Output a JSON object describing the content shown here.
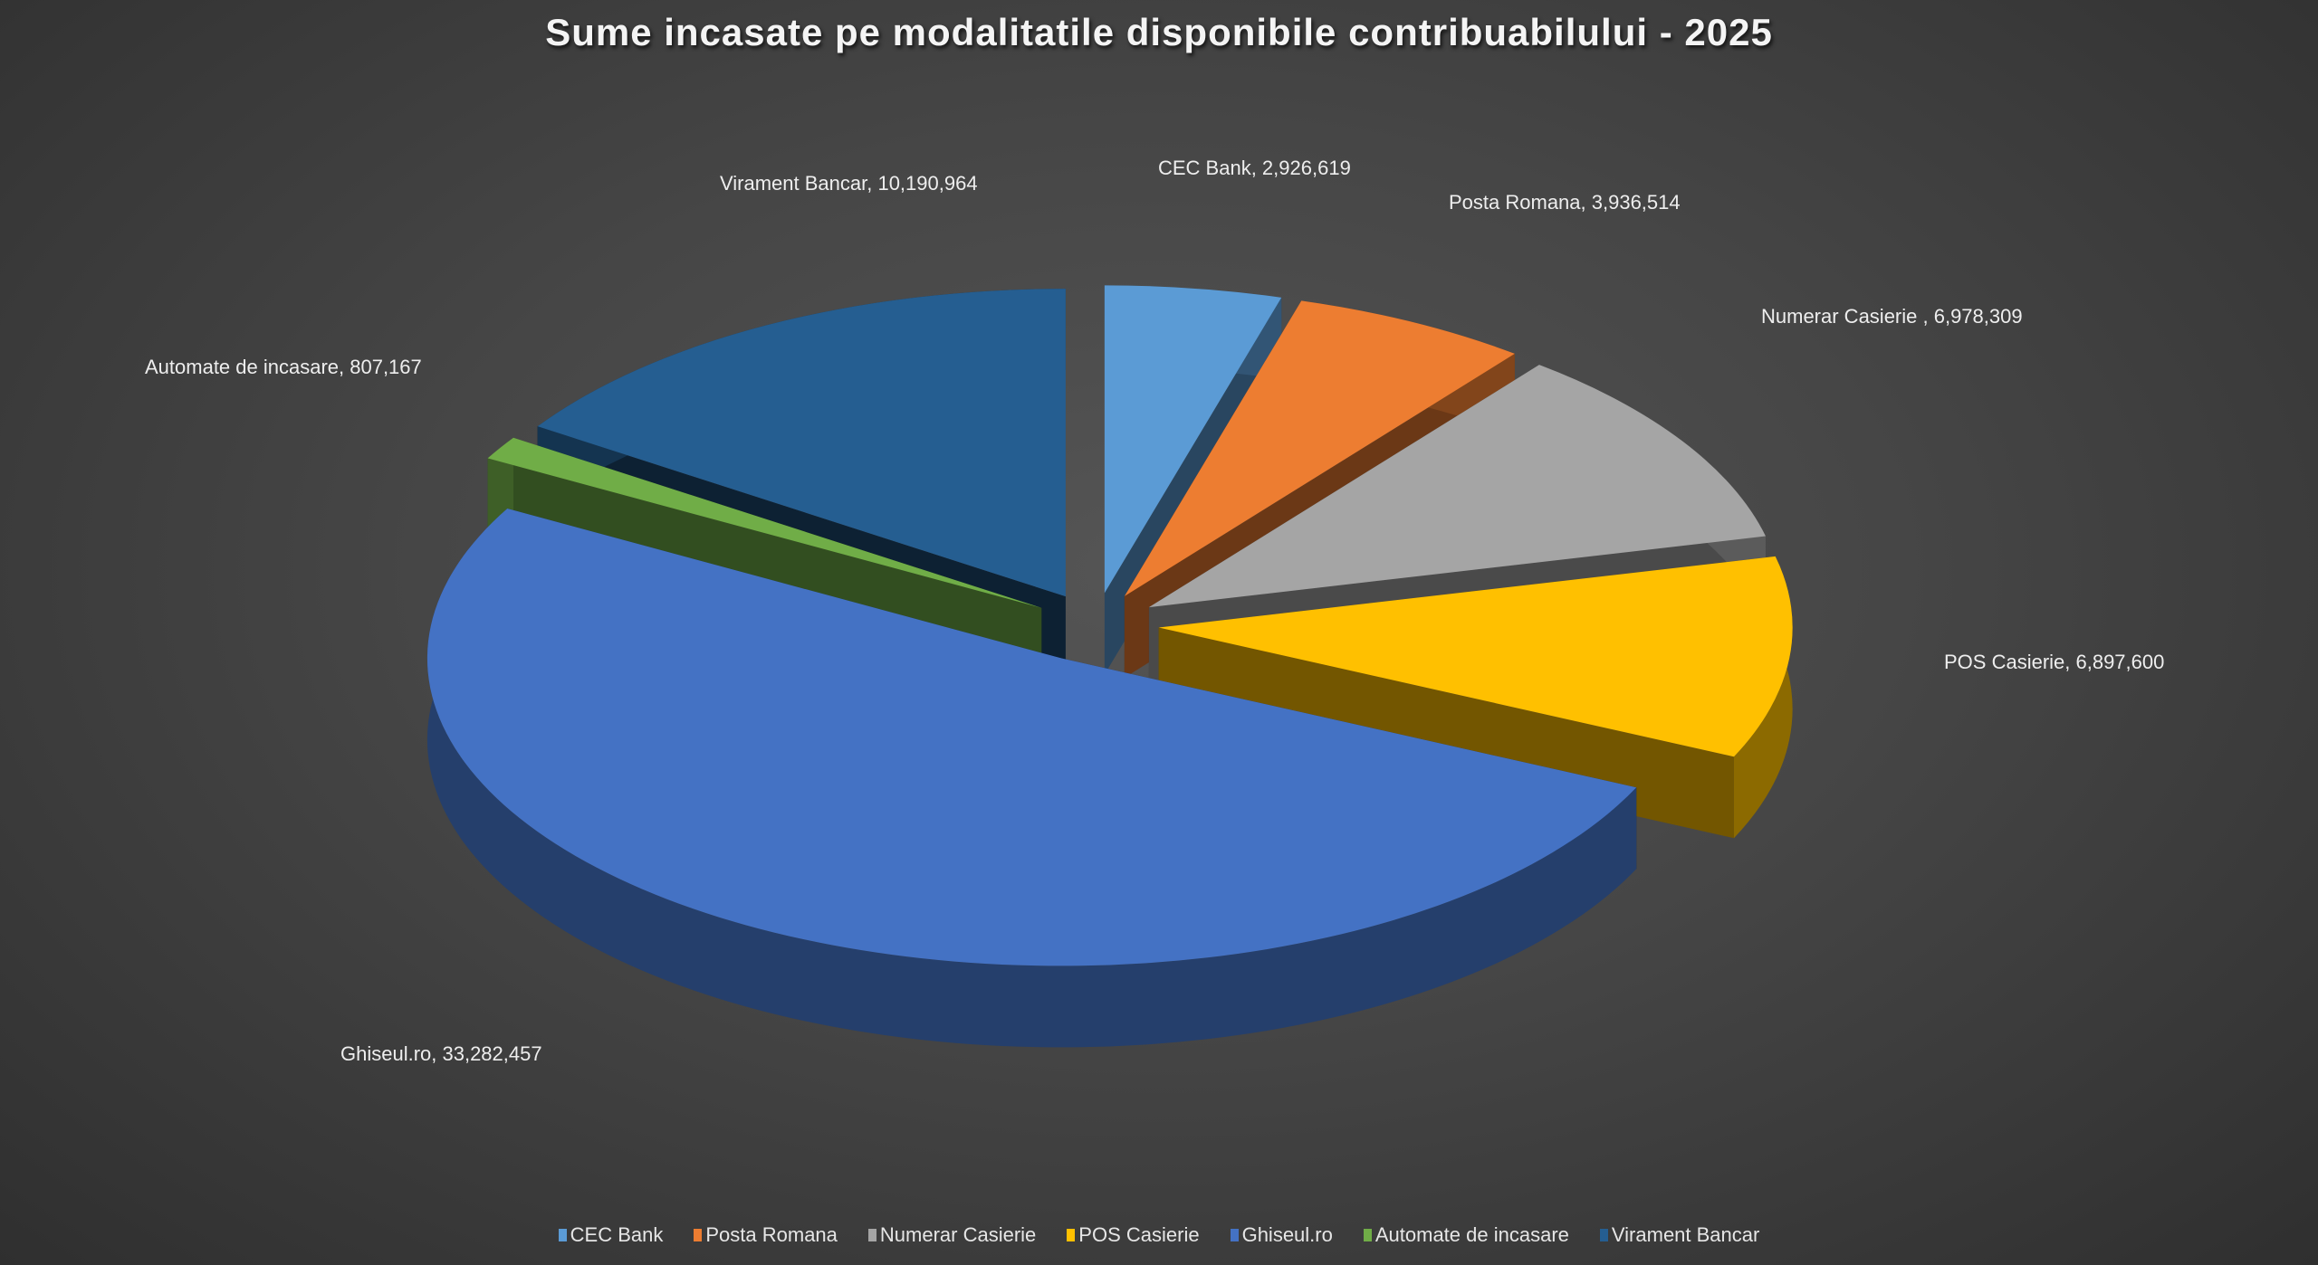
{
  "chart_data": {
    "type": "pie",
    "title": "Sume incasate pe modalitatile disponibile contribuabilului - 2025",
    "categories": [
      "CEC Bank",
      "Posta Romana",
      "Numerar Casierie",
      "POS Casierie",
      "Ghiseul.ro",
      "Automate de incasare",
      "Virament Bancar"
    ],
    "values": [
      2926619,
      3936514,
      6978309,
      6897600,
      33282457,
      807167,
      10190964
    ],
    "data_labels": [
      "CEC Bank, 2,926,619",
      "Posta Romana, 3,936,514",
      "Numerar Casierie , 6,978,309",
      "POS Casierie, 6,897,600",
      "Ghiseul.ro, 33,282,457",
      "Automate de incasare, 807,167",
      "Virament Bancar, 10,190,964"
    ],
    "colors": [
      "#5b9bd5",
      "#ed7d31",
      "#a5a5a5",
      "#ffc000",
      "#4472c4",
      "#70ad47",
      "#255e91"
    ],
    "legend_position": "bottom",
    "style": "3d-exploded"
  }
}
